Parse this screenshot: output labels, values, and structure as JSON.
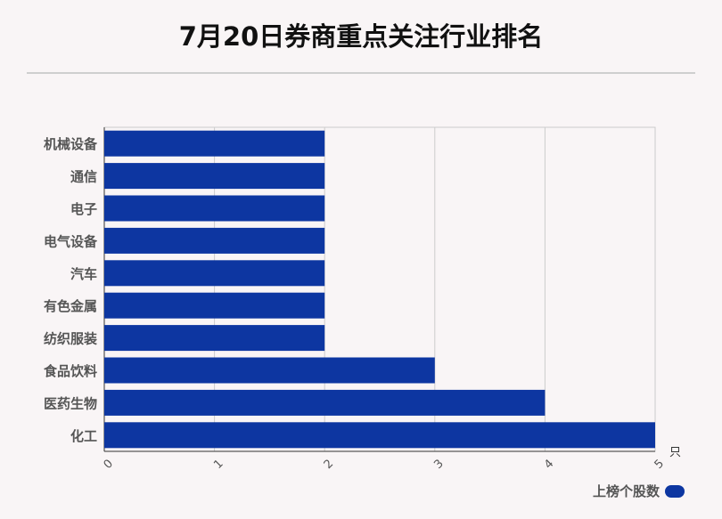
{
  "title": "7月20日券商重点关注行业排名",
  "legend": {
    "label": "上榜个股数",
    "color": "#0d36a1"
  },
  "chart_data": {
    "type": "bar",
    "orientation": "horizontal",
    "title": "7月20日券商重点关注行业排名",
    "categories": [
      "机械设备",
      "通信",
      "电子",
      "电气设备",
      "汽车",
      "有色金属",
      "纺织服装",
      "食品饮料",
      "医药生物",
      "化工"
    ],
    "series": [
      {
        "name": "上榜个股数",
        "values": [
          2,
          2,
          2,
          2,
          2,
          2,
          2,
          3,
          4,
          5
        ],
        "color": "#0d36a1"
      }
    ],
    "xlim": [
      0,
      5
    ],
    "xticks": [
      "0",
      "1",
      "2",
      "3",
      "4",
      "5"
    ],
    "xunit": "只",
    "grid": true,
    "legend_position": "bottom-right"
  }
}
